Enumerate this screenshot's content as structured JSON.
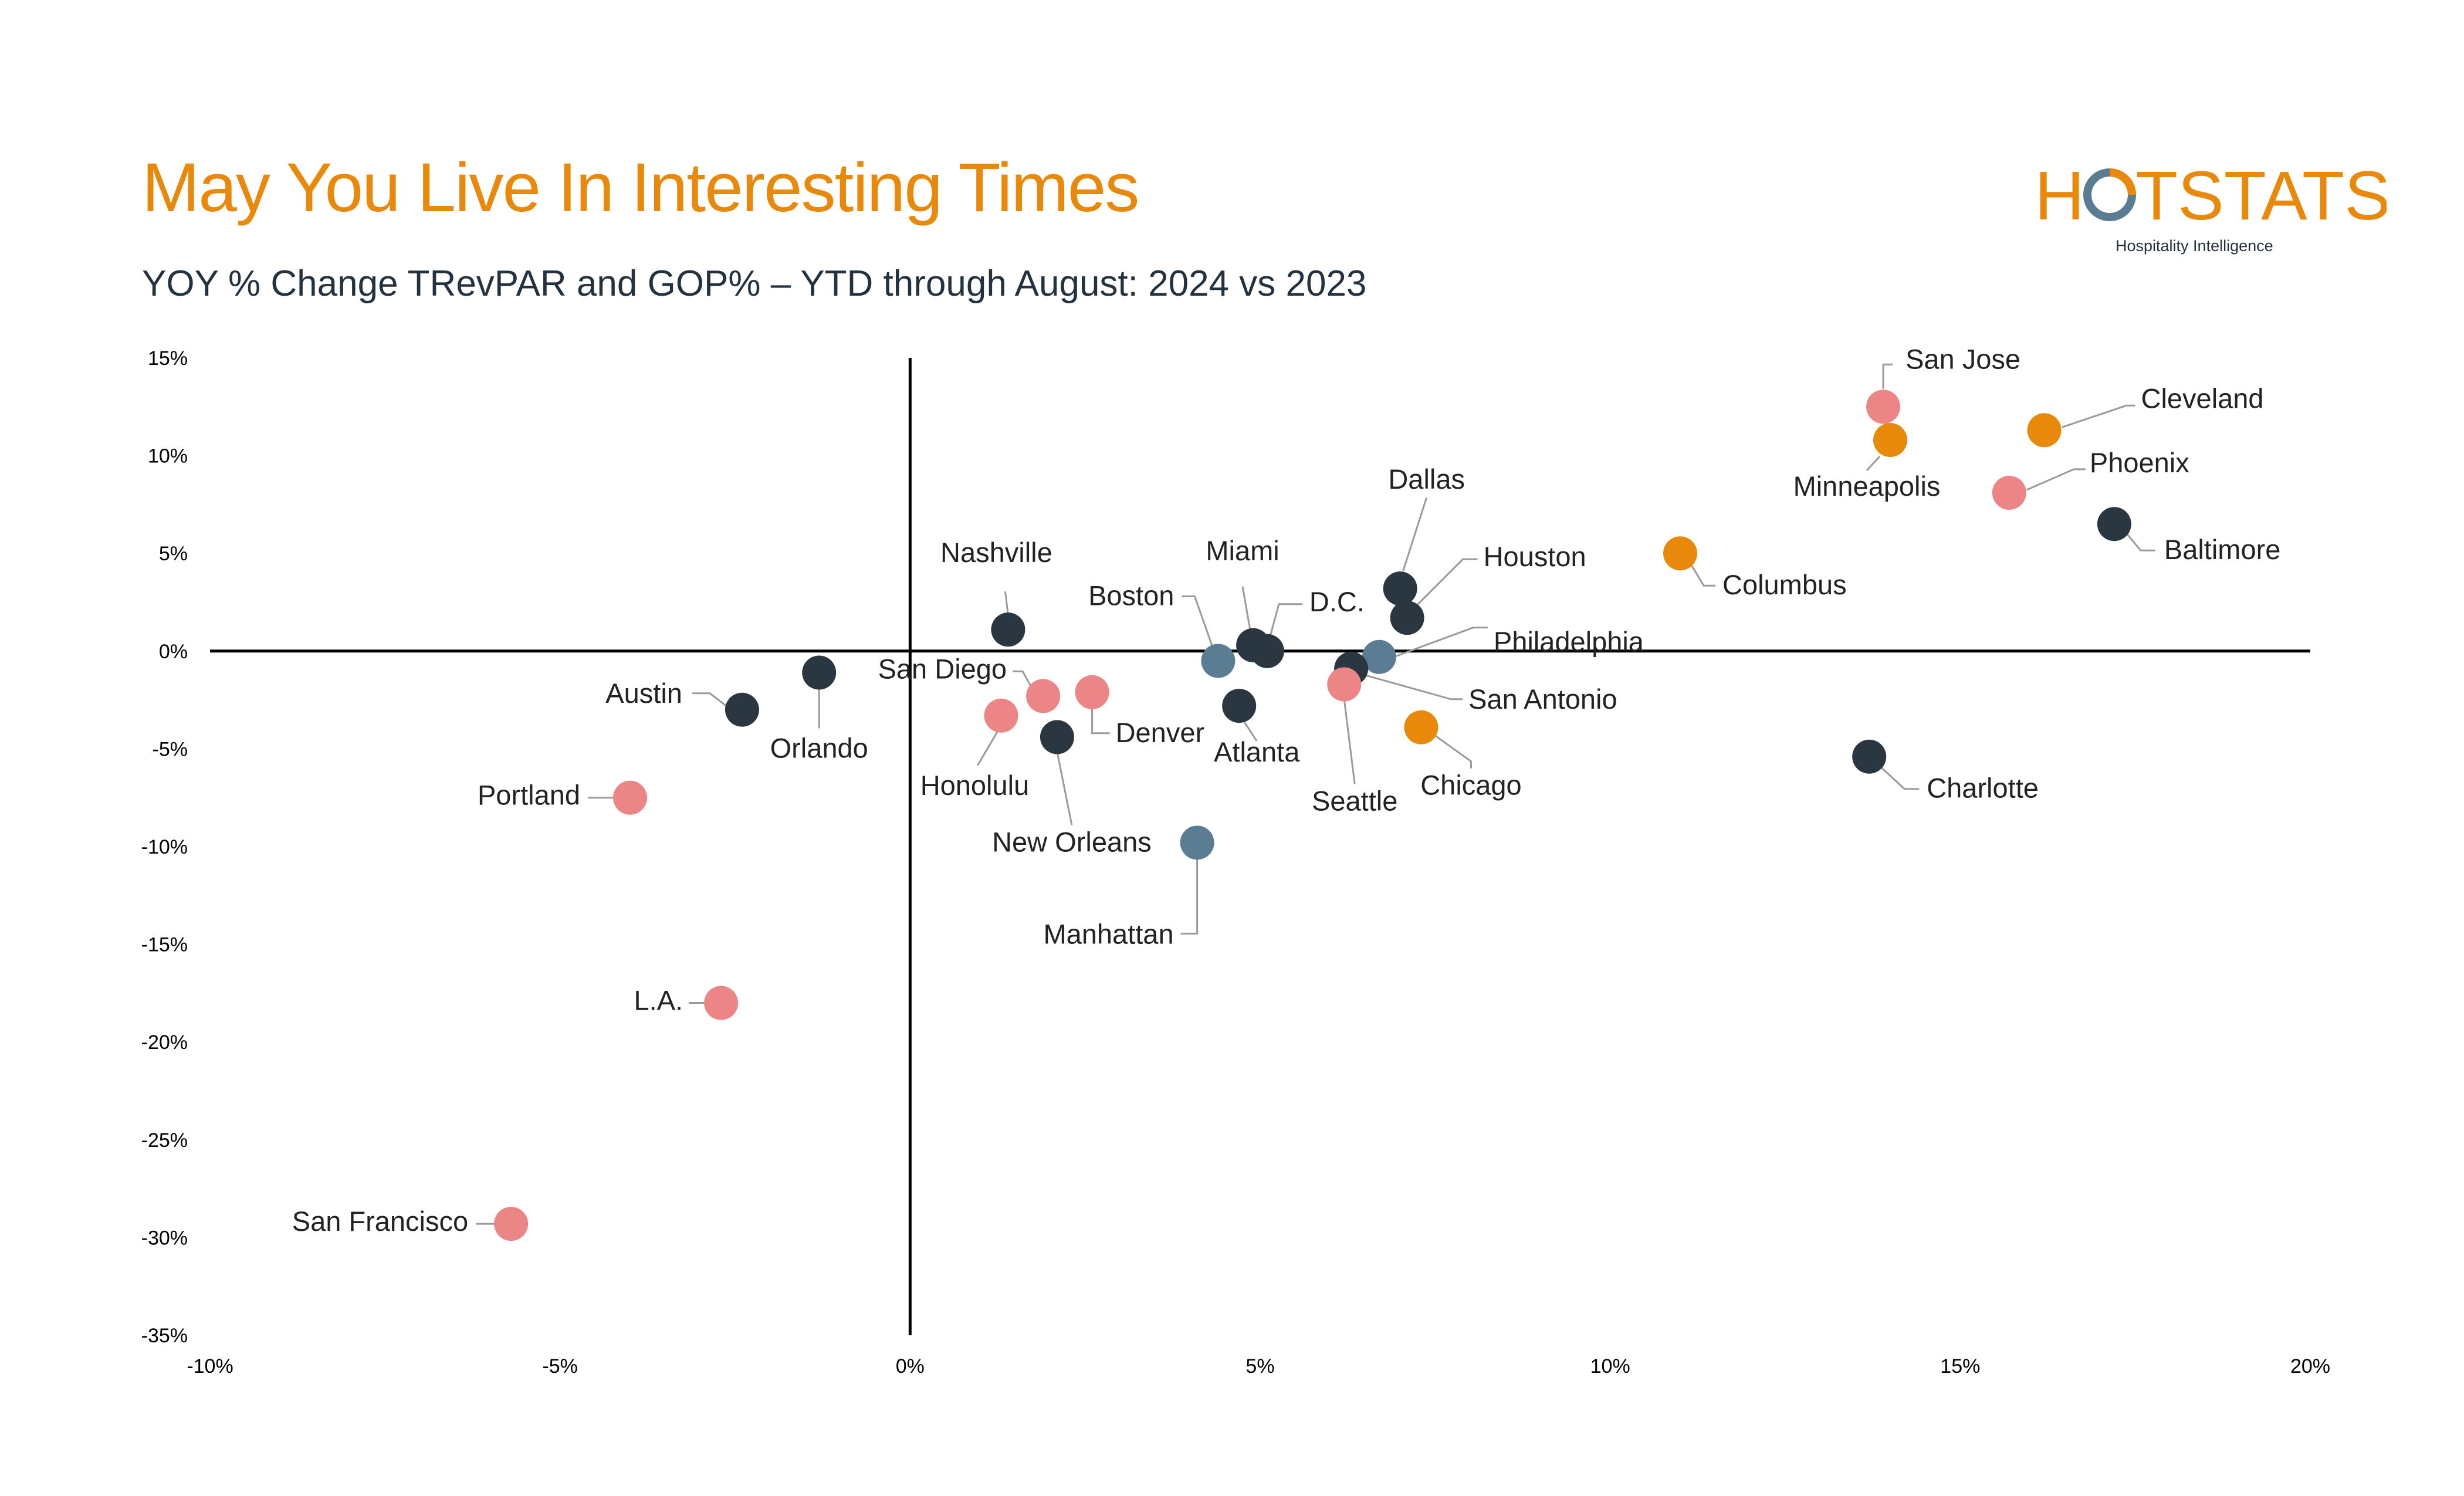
{
  "header": {
    "title": "May You Live In Interesting Times",
    "subtitle": "YOY % Change TRevPAR and GOP% – YTD through August: 2024 vs 2023"
  },
  "logo": {
    "text_left": "H",
    "text_right": "TSTATS",
    "tagline": "Hospitality Intelligence",
    "color": "#E8890C",
    "ring_color": "#5A7D94"
  },
  "colors": {
    "dark": "#2B3740",
    "slate": "#5A7D94",
    "pink": "#EC8585",
    "orange": "#E8890C",
    "axis": "#000000",
    "leader": "#9A9A9A",
    "label": "#222222"
  },
  "chart_data": {
    "type": "scatter",
    "title": "YOY % Change TRevPAR and GOP% – YTD through August: 2024 vs 2023",
    "xlabel": "",
    "ylabel": "",
    "xlim": [
      -10,
      20
    ],
    "ylim": [
      -35,
      15
    ],
    "xticks": [
      -10,
      -5,
      0,
      5,
      10,
      15,
      20
    ],
    "yticks": [
      15,
      10,
      5,
      0,
      -5,
      -10,
      -15,
      -20,
      -25,
      -30,
      -35
    ],
    "tick_format": "percent",
    "grid": false,
    "legend": "none",
    "points": [
      {
        "name": "San Jose",
        "x": 13.9,
        "y": 12.5,
        "color": "pink"
      },
      {
        "name": "Minneapolis",
        "x": 14.0,
        "y": 10.8,
        "color": "orange"
      },
      {
        "name": "Cleveland",
        "x": 16.2,
        "y": 11.3,
        "color": "orange"
      },
      {
        "name": "Phoenix",
        "x": 15.7,
        "y": 8.1,
        "color": "pink"
      },
      {
        "name": "Baltimore",
        "x": 17.2,
        "y": 6.5,
        "color": "dark"
      },
      {
        "name": "Columbus",
        "x": 11.0,
        "y": 5.0,
        "color": "orange"
      },
      {
        "name": "Charlotte",
        "x": 13.7,
        "y": -5.4,
        "color": "dark"
      },
      {
        "name": "Dallas",
        "x": 7.0,
        "y": 3.2,
        "color": "dark"
      },
      {
        "name": "Houston",
        "x": 7.1,
        "y": 1.7,
        "color": "dark"
      },
      {
        "name": "Philadelphia",
        "x": 6.7,
        "y": -0.3,
        "color": "slate"
      },
      {
        "name": "San Antonio",
        "x": 6.3,
        "y": -0.9,
        "color": "dark"
      },
      {
        "name": "Chicago",
        "x": 7.3,
        "y": -3.9,
        "color": "orange"
      },
      {
        "name": "Seattle",
        "x": 6.2,
        "y": -1.7,
        "color": "pink"
      },
      {
        "name": "Miami",
        "x": 4.9,
        "y": 0.3,
        "color": "dark"
      },
      {
        "name": "D.C.",
        "x": 5.1,
        "y": 0.0,
        "color": "dark"
      },
      {
        "name": "Boston",
        "x": 4.4,
        "y": -0.5,
        "color": "slate"
      },
      {
        "name": "Atlanta",
        "x": 4.7,
        "y": -2.8,
        "color": "dark"
      },
      {
        "name": "Manhattan",
        "x": 4.1,
        "y": -9.8,
        "color": "slate"
      },
      {
        "name": "Nashville",
        "x": 1.4,
        "y": 1.1,
        "color": "dark"
      },
      {
        "name": "San Diego",
        "x": 1.9,
        "y": -2.3,
        "color": "pink"
      },
      {
        "name": "Denver",
        "x": 2.6,
        "y": -2.1,
        "color": "pink"
      },
      {
        "name": "Honolulu",
        "x": 1.3,
        "y": -3.3,
        "color": "pink"
      },
      {
        "name": "New Orleans",
        "x": 2.1,
        "y": -4.4,
        "color": "dark"
      },
      {
        "name": "Orlando",
        "x": -1.3,
        "y": -1.1,
        "color": "dark"
      },
      {
        "name": "Austin",
        "x": -2.4,
        "y": -3.0,
        "color": "dark"
      },
      {
        "name": "Portland",
        "x": -4.0,
        "y": -7.5,
        "color": "pink"
      },
      {
        "name": "L.A.",
        "x": -2.7,
        "y": -18.0,
        "color": "pink"
      },
      {
        "name": "San Francisco",
        "x": -5.7,
        "y": -29.3,
        "color": "pink"
      }
    ]
  }
}
